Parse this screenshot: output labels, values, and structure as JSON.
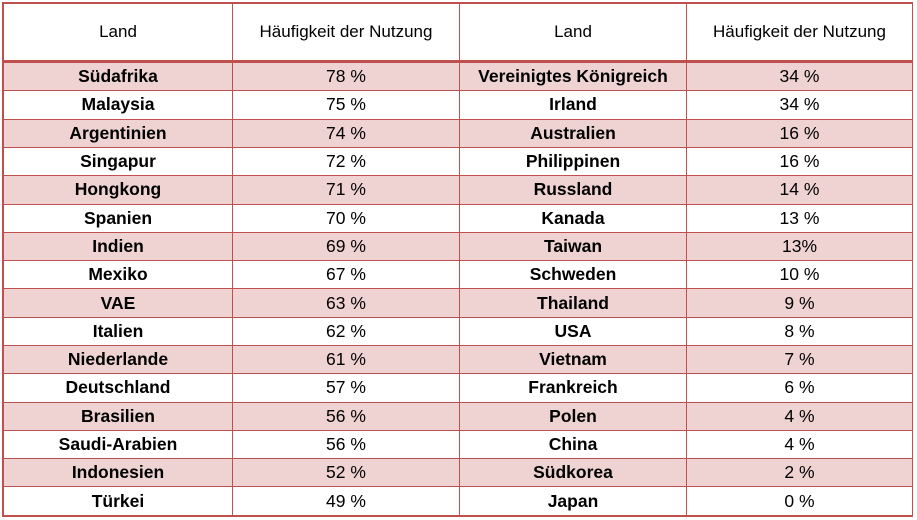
{
  "headers": [
    "Land",
    "Häufigkeit der Nutzung",
    "Land",
    "Häufigkeit der Nutzung"
  ],
  "rows": [
    [
      "Südafrika",
      "78 %",
      "Vereinigtes Königreich",
      "34 %"
    ],
    [
      "Malaysia",
      "75 %",
      "Irland",
      "34 %"
    ],
    [
      "Argentinien",
      "74 %",
      "Australien",
      "16 %"
    ],
    [
      "Singapur",
      "72 %",
      "Philippinen",
      "16 %"
    ],
    [
      "Hongkong",
      "71 %",
      "Russland",
      "14 %"
    ],
    [
      "Spanien",
      "70 %",
      "Kanada",
      "13 %"
    ],
    [
      "Indien",
      "69 %",
      "Taiwan",
      "13%"
    ],
    [
      "Mexiko",
      "67 %",
      "Schweden",
      "10 %"
    ],
    [
      "VAE",
      "63 %",
      "Thailand",
      "9 %"
    ],
    [
      "Italien",
      "62 %",
      "USA",
      "8 %"
    ],
    [
      "Niederlande",
      "61 %",
      "Vietnam",
      "7 %"
    ],
    [
      "Deutschland",
      "57 %",
      "Frankreich",
      "6 %"
    ],
    [
      "Brasilien",
      "56 %",
      "Polen",
      "4 %"
    ],
    [
      "Saudi-Arabien",
      "56 %",
      "China",
      "4 %"
    ],
    [
      "Indonesien",
      "52 %",
      "Südkorea",
      "2 %"
    ],
    [
      "Türkei",
      "49 %",
      "Japan",
      "0 %"
    ]
  ],
  "colors": {
    "border": "#c0504d",
    "band": "#efd3d2",
    "background": "#ffffff"
  }
}
